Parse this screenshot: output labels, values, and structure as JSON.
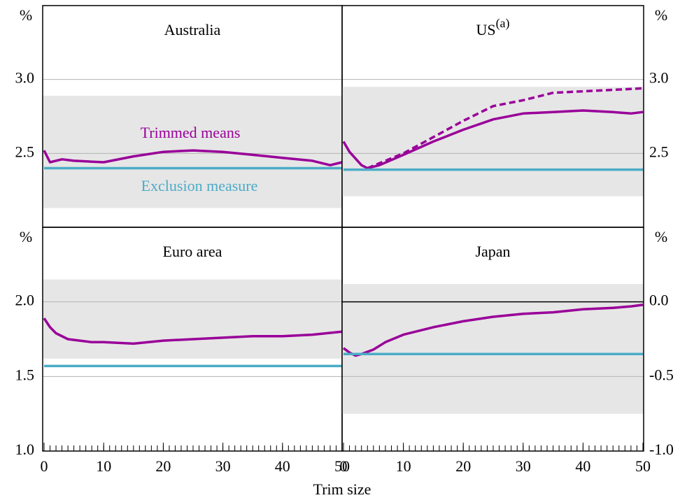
{
  "xlabel": "Trim size",
  "chart_data": [
    {
      "type": "line",
      "title": "Australia",
      "ylabel": "%",
      "yaxis_side": "left",
      "xlim": [
        0,
        50
      ],
      "ylim": [
        2.0,
        3.5
      ],
      "yticks": [
        2.5,
        {
          "value": 3,
          "label": "3.0"
        }
      ],
      "grid": true,
      "band": [
        2.13,
        2.89
      ],
      "band_color": "#e6e6e6",
      "series": [
        {
          "name": "Trimmed means",
          "color": "#990099",
          "x": [
            0,
            1,
            3,
            5,
            10,
            15,
            20,
            25,
            30,
            35,
            40,
            45,
            48,
            50
          ],
          "values": [
            2.52,
            2.44,
            2.46,
            2.45,
            2.44,
            2.48,
            2.51,
            2.52,
            2.51,
            2.49,
            2.47,
            2.45,
            2.42,
            2.44
          ]
        },
        {
          "name": "Exclusion measure",
          "color": "#4bacc6",
          "x": [
            0,
            50
          ],
          "values": [
            2.4,
            2.4
          ]
        }
      ]
    },
    {
      "type": "line",
      "title": "US",
      "title_sup": "(a)",
      "ylabel": "%",
      "yaxis_side": "right",
      "xlim": [
        0,
        50
      ],
      "ylim": [
        2.0,
        3.5
      ],
      "yticks": [
        2.5,
        {
          "value": 3,
          "label": "3.0"
        }
      ],
      "grid": true,
      "band": [
        2.21,
        2.95
      ],
      "band_color": "#e6e6e6",
      "series": [
        {
          "color": "#990099",
          "x": [
            0,
            1,
            3,
            4,
            6,
            10,
            15,
            20,
            25,
            30,
            35,
            40,
            45,
            48,
            50
          ],
          "values": [
            2.58,
            2.51,
            2.42,
            2.4,
            2.42,
            2.49,
            2.58,
            2.66,
            2.73,
            2.77,
            2.78,
            2.79,
            2.78,
            2.77,
            2.78
          ]
        },
        {
          "color": "#990099",
          "dash": true,
          "x": [
            4,
            10,
            15,
            20,
            25,
            30,
            35,
            40,
            45,
            50
          ],
          "values": [
            2.4,
            2.5,
            2.61,
            2.72,
            2.82,
            2.86,
            2.91,
            2.92,
            2.93,
            2.94
          ]
        },
        {
          "color": "#4bacc6",
          "x": [
            0,
            50
          ],
          "values": [
            2.39,
            2.39
          ]
        }
      ]
    },
    {
      "type": "line",
      "title": "Euro area",
      "ylabel": "%",
      "yaxis_side": "left",
      "xlim": [
        0,
        50
      ],
      "ylim": [
        1.0,
        2.5
      ],
      "xticks": [
        0,
        10,
        20,
        30,
        40,
        50
      ],
      "yticks": [
        {
          "value": 1,
          "label": "1.0"
        },
        1.5,
        {
          "value": 2,
          "label": "2.0"
        }
      ],
      "grid": true,
      "band": [
        1.62,
        2.15
      ],
      "band_color": "#e6e6e6",
      "series": [
        {
          "color": "#990099",
          "x": [
            0,
            1,
            2,
            4,
            6,
            8,
            10,
            15,
            20,
            25,
            30,
            35,
            40,
            45,
            50
          ],
          "values": [
            1.89,
            1.83,
            1.79,
            1.75,
            1.74,
            1.73,
            1.73,
            1.72,
            1.74,
            1.75,
            1.76,
            1.77,
            1.77,
            1.78,
            1.8
          ]
        },
        {
          "color": "#4bacc6",
          "x": [
            0,
            50
          ],
          "values": [
            1.57,
            1.57
          ]
        }
      ]
    },
    {
      "type": "line",
      "title": "Japan",
      "ylabel": "%",
      "yaxis_side": "right",
      "xlim": [
        0,
        50
      ],
      "ylim": [
        -1.0,
        0.5
      ],
      "xticks": [
        0,
        10,
        20,
        30,
        40,
        50
      ],
      "yticks": [
        {
          "value": -1,
          "label": "-1.0"
        },
        -0.5,
        {
          "value": 0,
          "label": "0.0"
        }
      ],
      "grid": true,
      "band": [
        -0.75,
        0.12
      ],
      "band_color": "#e6e6e6",
      "series": [
        {
          "color": "#990099",
          "x": [
            0,
            1,
            2,
            3,
            5,
            7,
            10,
            15,
            20,
            25,
            30,
            35,
            40,
            45,
            48,
            50
          ],
          "values": [
            -0.31,
            -0.34,
            -0.36,
            -0.35,
            -0.32,
            -0.27,
            -0.22,
            -0.17,
            -0.13,
            -0.1,
            -0.08,
            -0.07,
            -0.05,
            -0.04,
            -0.03,
            -0.02
          ]
        },
        {
          "color": "#4bacc6",
          "x": [
            0,
            50
          ],
          "values": [
            -0.35,
            -0.35
          ]
        }
      ]
    }
  ]
}
